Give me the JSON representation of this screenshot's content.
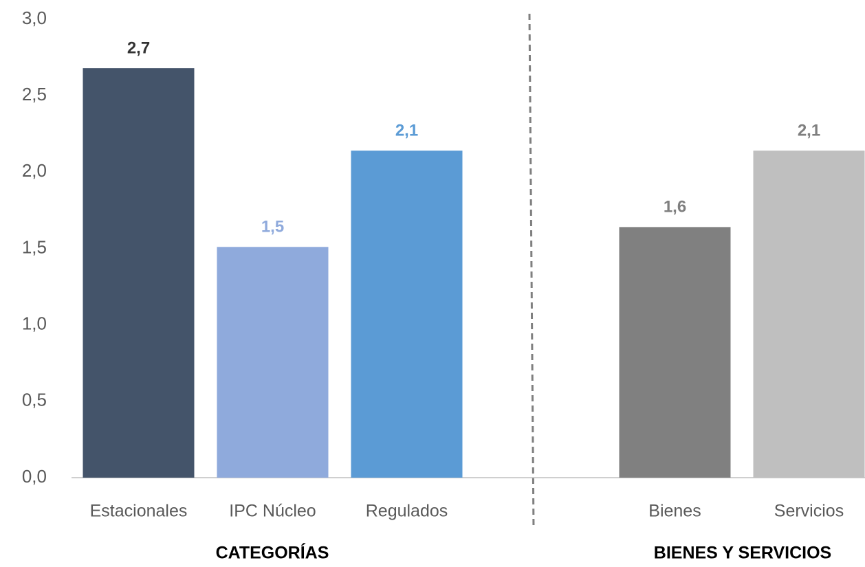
{
  "chart_data": {
    "type": "bar",
    "categories": [
      "Estacionales",
      "IPC Núcleo",
      "Regulados",
      null,
      "Bienes",
      "Servicios"
    ],
    "values": [
      2.68,
      1.51,
      2.14,
      null,
      1.64,
      2.14
    ],
    "value_labels": [
      "2,7",
      "1,5",
      "2,1",
      null,
      "1,6",
      "2,1"
    ],
    "colors": [
      "#44546a",
      "#8faadc",
      "#5b9bd5",
      null,
      "#808080",
      "#bfbfbf"
    ],
    "value_label_colors": [
      "#333333",
      "#8faadc",
      "#5b9bd5",
      null,
      "#7f7f7f",
      "#7f7f7f"
    ],
    "ylim": [
      0,
      3
    ],
    "yticks": [
      {
        "value": 0,
        "label": "0,0"
      },
      {
        "value": 0.5,
        "label": "0,5"
      },
      {
        "value": 1,
        "label": "1,0"
      },
      {
        "value": 1.5,
        "label": "1,5"
      },
      {
        "value": 2,
        "label": "2,0"
      },
      {
        "value": 2.5,
        "label": "2,5"
      },
      {
        "value": 3,
        "label": "3,0"
      }
    ],
    "grid": false,
    "annotations": [
      "CATEGORÍAS",
      "BIENES Y SERVICIOS"
    ]
  }
}
